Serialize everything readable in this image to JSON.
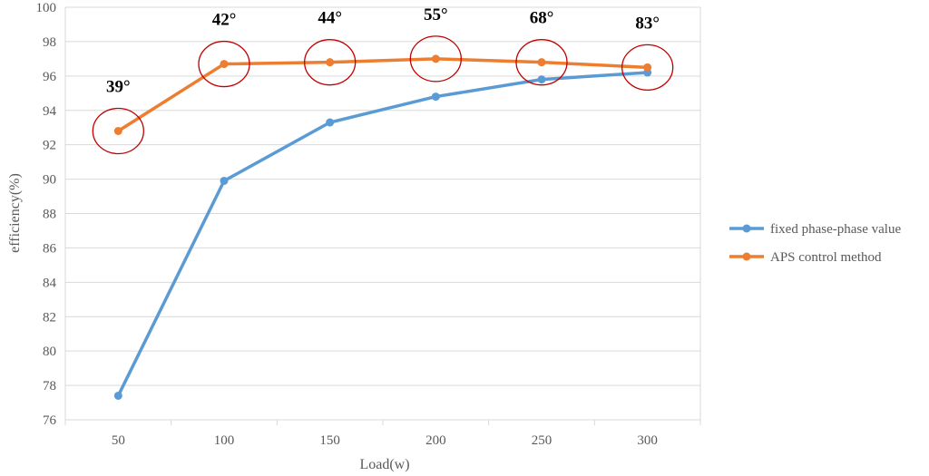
{
  "chart_data": {
    "type": "line",
    "title": "",
    "xlabel": "Load(w)",
    "ylabel": "efficiency(%)",
    "categories": [
      "50",
      "100",
      "150",
      "200",
      "250",
      "300"
    ],
    "ylim": [
      76,
      100
    ],
    "yticks": [
      76,
      78,
      80,
      82,
      84,
      86,
      88,
      90,
      92,
      94,
      96,
      98,
      100
    ],
    "grid": true,
    "legend": "right",
    "series": [
      {
        "name": "fixed phase-phase value",
        "color": "#5B9BD5",
        "values": [
          77.4,
          89.9,
          93.3,
          94.8,
          95.8,
          96.2
        ]
      },
      {
        "name": "APS control method",
        "color": "#ED7D31",
        "values": [
          92.8,
          96.7,
          96.8,
          97.0,
          96.8,
          96.5
        ]
      }
    ],
    "annotations": {
      "series_index": 1,
      "labels": [
        "39°",
        "42°",
        "44°",
        "55°",
        "68°",
        "83°"
      ],
      "circle_color": "#C00000"
    }
  }
}
